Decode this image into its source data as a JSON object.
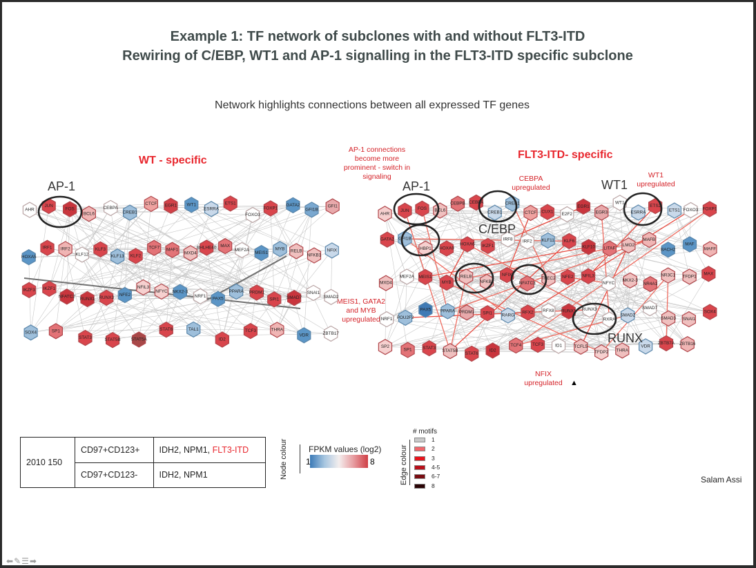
{
  "title_line1": "Example 1: TF network of subclones with and without FLT3-ITD",
  "title_line2": "Rewiring of C/EBP, WT1 and AP-1 signalling in the FLT3-ITD specific subclone",
  "subtitle": "Network highlights connections between all expressed TF genes",
  "wt_heading": "WT - specific",
  "flt_heading": "FLT3-ITD- specific",
  "annotations": {
    "ap1_switch": "AP-1 connections become more prominent - switch in signaling",
    "cebpa_up": "CEBPA upregulated",
    "wt1_up": "WT1 upregulated",
    "meis_up": "MEIS1, GATA2 and MYB upregulated",
    "nfix_up": "NFIX upregulated"
  },
  "clusters": {
    "wt_ap1": "AP-1",
    "flt_ap1": "AP-1",
    "flt_cebp": "C/EBP",
    "flt_wt1": "WT1",
    "flt_runx": "RUNX"
  },
  "wt_nodes": [
    {
      "label": "AHR",
      "c": "#ffffff"
    },
    {
      "label": "JUN",
      "c": "#d9454c"
    },
    {
      "label": "FOS",
      "c": "#c9353d"
    },
    {
      "label": "BCL6",
      "c": "#f0b5b4"
    },
    {
      "label": "CEBPA",
      "c": "#ffffff"
    },
    {
      "label": "CREB1",
      "c": "#9ebfdb"
    },
    {
      "label": "CTCF",
      "c": "#efa2a0"
    },
    {
      "label": "EGR1",
      "c": "#d24148"
    },
    {
      "label": "WT1",
      "c": "#5b95c6"
    },
    {
      "label": "ESRRA",
      "c": "#c9d9ea"
    },
    {
      "label": "ETS1",
      "c": "#d9454c"
    },
    {
      "label": "FOXO3",
      "c": "#ffffff"
    },
    {
      "label": "FOXP1",
      "c": "#d9454c"
    },
    {
      "label": "GATA2",
      "c": "#5b95c6"
    },
    {
      "label": "GFI1B",
      "c": "#7aa8d0"
    },
    {
      "label": "GFI1",
      "c": "#e8a9ab"
    },
    {
      "label": "HOXA5",
      "c": "#5b95c6"
    },
    {
      "label": "IRF1",
      "c": "#d9454c"
    },
    {
      "label": "IRF2",
      "c": "#f0b5b4"
    },
    {
      "label": "KLF12",
      "c": "#ffffff"
    },
    {
      "label": "KLF3",
      "c": "#d9454c"
    },
    {
      "label": "KLF13",
      "c": "#9ebfdb"
    },
    {
      "label": "KLF2",
      "c": "#d9454c"
    },
    {
      "label": "TCF7",
      "c": "#e37377"
    },
    {
      "label": "MAF1",
      "c": "#e37377"
    },
    {
      "label": "MXD4",
      "c": "#f0c0bf"
    },
    {
      "label": "BHLHE40",
      "c": "#d9454c"
    },
    {
      "label": "MAX",
      "c": "#e37377"
    },
    {
      "label": "MEF2A",
      "c": "#ffffff"
    },
    {
      "label": "MEIS1",
      "c": "#5b95c6"
    },
    {
      "label": "MYB",
      "c": "#9ebfdb"
    },
    {
      "label": "RELB",
      "c": "#f0c0bf"
    },
    {
      "label": "NFKB1",
      "c": "#f0c0bf"
    },
    {
      "label": "NFIX",
      "c": "#c9d9ea"
    },
    {
      "label": "IKZF3",
      "c": "#d9454c"
    },
    {
      "label": "IKZF1",
      "c": "#d9454c"
    },
    {
      "label": "NFATC2",
      "c": "#c9353d"
    },
    {
      "label": "RUNX1",
      "c": "#c9353d"
    },
    {
      "label": "RUNX3",
      "c": "#d9454c"
    },
    {
      "label": "NFE2",
      "c": "#5b95c6"
    },
    {
      "label": "NFIL3",
      "c": "#f6d0cf"
    },
    {
      "label": "NFYC",
      "c": "#f6d0cf"
    },
    {
      "label": "NKX2-3",
      "c": "#5b95c6"
    },
    {
      "label": "NRF1",
      "c": "#ffffff"
    },
    {
      "label": "PAX5",
      "c": "#5b95c6"
    },
    {
      "label": "PPARA",
      "c": "#9ebfdb"
    },
    {
      "label": "PRDM1",
      "c": "#d9454c"
    },
    {
      "label": "SPI1",
      "c": "#d9454c"
    },
    {
      "label": "SMAD7",
      "c": "#c9353d"
    },
    {
      "label": "SNAI1",
      "c": "#ffffff"
    },
    {
      "label": "SMAD2",
      "c": "#ffffff"
    },
    {
      "label": "SOX4",
      "c": "#9ebfdb"
    },
    {
      "label": "SP1",
      "c": "#e37377"
    },
    {
      "label": "STAT3",
      "c": "#d9454c"
    },
    {
      "label": "STAT5B",
      "c": "#d9454c"
    },
    {
      "label": "STAT5A",
      "c": "#a84848"
    },
    {
      "label": "STAT6",
      "c": "#d9454c"
    },
    {
      "label": "TAL1",
      "c": "#9ebfdb"
    },
    {
      "label": "ID2",
      "c": "#d9454c"
    },
    {
      "label": "TCF3",
      "c": "#d9454c"
    },
    {
      "label": "THRA",
      "c": "#f0b5b4"
    },
    {
      "label": "VDR",
      "c": "#5b95c6"
    },
    {
      "label": "ZBTB17",
      "c": "#ffffff"
    }
  ],
  "flt_nodes": [
    {
      "label": "AHR",
      "c": "#f6d0cf"
    },
    {
      "label": "JUN",
      "c": "#d9454c"
    },
    {
      "label": "FOS",
      "c": "#d9454c"
    },
    {
      "label": "BCL6",
      "c": "#f0c0bf"
    },
    {
      "label": "CEBPB",
      "c": "#e37377"
    },
    {
      "label": "CEBPA",
      "c": "#d9454c"
    },
    {
      "label": "CREB1",
      "c": "#c9d9ea"
    },
    {
      "label": "CREB1",
      "c": "#9ebfdb"
    },
    {
      "label": "CTCF",
      "c": "#efa2a0"
    },
    {
      "label": "CUX1",
      "c": "#d9454c"
    },
    {
      "label": "E2F2",
      "c": "#ffffff"
    },
    {
      "label": "EGR1",
      "c": "#c9353d"
    },
    {
      "label": "EGR3",
      "c": "#e8a9ab"
    },
    {
      "label": "WT1",
      "c": "#ffffff"
    },
    {
      "label": "ESRRA",
      "c": "#c9d9ea"
    },
    {
      "label": "ETS2",
      "c": "#d9454c"
    },
    {
      "label": "ETS1",
      "c": "#c9d9ea"
    },
    {
      "label": "FOXO3",
      "c": "#ffffff"
    },
    {
      "label": "FOXP1",
      "c": "#d9454c"
    },
    {
      "label": "GATA2",
      "c": "#d9454c"
    },
    {
      "label": "GFI1B",
      "c": "#9ebfdb"
    },
    {
      "label": "HBP1",
      "c": "#f6d0cf"
    },
    {
      "label": "HOXA9",
      "c": "#d9454c"
    },
    {
      "label": "HOXA6",
      "c": "#d9454c"
    },
    {
      "label": "IKZF1",
      "c": "#d9454c"
    },
    {
      "label": "IRF8",
      "c": "#ffffff"
    },
    {
      "label": "IRF2",
      "c": "#ffffff"
    },
    {
      "label": "KLF11",
      "c": "#9ebfdb"
    },
    {
      "label": "KLF6",
      "c": "#d9454c"
    },
    {
      "label": "KLF10",
      "c": "#c9353d"
    },
    {
      "label": "LITAF",
      "c": "#e37377"
    },
    {
      "label": "LMO2",
      "c": "#f0c0bf"
    },
    {
      "label": "MAFB",
      "c": "#f0b5b4"
    },
    {
      "label": "BACH2",
      "c": "#5b95c6"
    },
    {
      "label": "MAF",
      "c": "#5b95c6"
    },
    {
      "label": "MAFF",
      "c": "#f0b5b4"
    },
    {
      "label": "MXD4",
      "c": "#f0c0bf"
    },
    {
      "label": "MEF2A",
      "c": "#ffffff"
    },
    {
      "label": "MEIS1",
      "c": "#d9454c"
    },
    {
      "label": "MYB",
      "c": "#d9454c"
    },
    {
      "label": "RELB",
      "c": "#f0c0bf"
    },
    {
      "label": "NFKB1",
      "c": "#f0c0bf"
    },
    {
      "label": "NFIX",
      "c": "#d9454c"
    },
    {
      "label": "NFATC3",
      "c": "#e37377"
    },
    {
      "label": "TFEC2",
      "c": "#f0c0bf"
    },
    {
      "label": "NFE2",
      "c": "#d9454c"
    },
    {
      "label": "NFIL3",
      "c": "#d9454c"
    },
    {
      "label": "NFYC",
      "c": "#ffffff"
    },
    {
      "label": "NKX2-3",
      "c": "#f0c0bf"
    },
    {
      "label": "NR4A1",
      "c": "#e37377"
    },
    {
      "label": "NR3C1",
      "c": "#f0c0bf"
    },
    {
      "label": "TFDP1",
      "c": "#f0c0bf"
    },
    {
      "label": "MAX",
      "c": "#d9454c"
    },
    {
      "label": "NRF1",
      "c": "#ffffff"
    },
    {
      "label": "POU2F2",
      "c": "#9ebfdb"
    },
    {
      "label": "PAX5",
      "c": "#3f7ab5"
    },
    {
      "label": "PPARA",
      "c": "#9ebfdb"
    },
    {
      "label": "PRDM1",
      "c": "#e8a9ab"
    },
    {
      "label": "SPI1",
      "c": "#d9454c"
    },
    {
      "label": "RARG",
      "c": "#c9d9ea"
    },
    {
      "label": "RFX2",
      "c": "#d9454c"
    },
    {
      "label": "RFX8",
      "c": "#ffffff"
    },
    {
      "label": "RUNX1",
      "c": "#c9353d"
    },
    {
      "label": "RUNX3",
      "c": "#ffffff"
    },
    {
      "label": "RXRA",
      "c": "#ffffff"
    },
    {
      "label": "SMAD2",
      "c": "#c9d9ea"
    },
    {
      "label": "SMAD7",
      "c": "#ffffff"
    },
    {
      "label": "SMAD3",
      "c": "#f0c0bf"
    },
    {
      "label": "SNAI1",
      "c": "#f0c0bf"
    },
    {
      "label": "SOX4",
      "c": "#d9454c"
    },
    {
      "label": "SP2",
      "c": "#f6d0cf"
    },
    {
      "label": "SP1",
      "c": "#e37377"
    },
    {
      "label": "STAT3",
      "c": "#d9454c"
    },
    {
      "label": "STAT5B",
      "c": "#f0c0bf"
    },
    {
      "label": "STAT6",
      "c": "#d9454c"
    },
    {
      "label": "ID2",
      "c": "#c9353d"
    },
    {
      "label": "TCF4",
      "c": "#e37377"
    },
    {
      "label": "TCF3",
      "c": "#d9454c"
    },
    {
      "label": "ID1",
      "c": "#ffffff"
    },
    {
      "label": "TCFL5",
      "c": "#f0c0bf"
    },
    {
      "label": "TFDP2",
      "c": "#f6d0cf"
    },
    {
      "label": "THRA",
      "c": "#f0c0bf"
    },
    {
      "label": "VDR",
      "c": "#c9d9ea"
    },
    {
      "label": "ZBTB7A",
      "c": "#d9454c"
    },
    {
      "label": "ZBTB16",
      "c": "#f0b5b4"
    }
  ],
  "sample_table": {
    "sample_id": "2010 150",
    "rows": [
      {
        "phenotype": "CD97+CD123+",
        "mutations": "IDH2, NPM1, ",
        "flt3": "FLT3-ITD"
      },
      {
        "phenotype": "CD97+CD123-",
        "mutations": "IDH2, NPM1",
        "flt3": ""
      }
    ]
  },
  "node_legend": {
    "axis": "Node colour",
    "title": "FPKM values (log2)",
    "min": "1",
    "max": "8",
    "colors": [
      "#3b7ab7",
      "#f4eeee",
      "#cf3f46"
    ]
  },
  "edge_legend": {
    "axis": "Edge colour",
    "title": "# motifs",
    "items": [
      {
        "label": "1",
        "color": "#c9c9c9"
      },
      {
        "label": "2",
        "color": "#f0686d"
      },
      {
        "label": "3",
        "color": "#e8141c"
      },
      {
        "label": "4-5",
        "color": "#b8101a"
      },
      {
        "label": "6-7",
        "color": "#7a0d12"
      },
      {
        "label": "8",
        "color": "#2a0405"
      }
    ]
  },
  "author": "Salam Assi",
  "nav_icons": [
    "back-arrow-icon",
    "pen-icon",
    "menu-icon",
    "forward-arrow-icon"
  ]
}
